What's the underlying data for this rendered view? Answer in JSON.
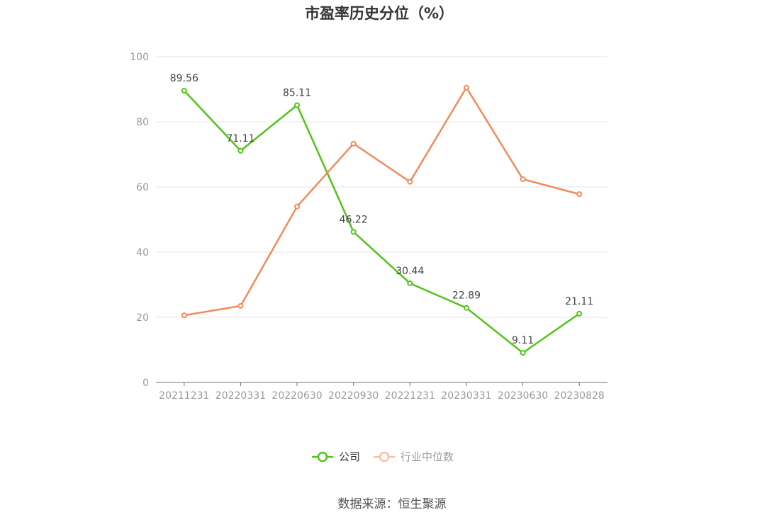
{
  "chart_data": {
    "type": "line",
    "title": "市盈率历史分位（%）",
    "categories": [
      "20211231",
      "20220331",
      "20220630",
      "20220930",
      "20221231",
      "20230331",
      "20230630",
      "20230828"
    ],
    "ylim": [
      0,
      100
    ],
    "yticks": [
      0,
      20,
      40,
      60,
      80,
      100
    ],
    "grid": true,
    "legend_position": "bottom",
    "series": [
      {
        "name": "公司",
        "color": "#52c41a",
        "values": [
          89.56,
          71.11,
          85.11,
          46.22,
          30.44,
          22.89,
          9.11,
          21.11
        ],
        "labels": [
          "89.56",
          "71.11",
          "85.11",
          "46.22",
          "30.44",
          "22.89",
          "9.11",
          "21.11"
        ]
      },
      {
        "name": "行业中位数",
        "color": "#f08c5a",
        "values": [
          20.6,
          23.5,
          54.0,
          73.3,
          61.6,
          90.5,
          62.4,
          57.8
        ],
        "labels": []
      }
    ],
    "legend_colors": [
      "#52c41a",
      "#f9bfa3"
    ],
    "source": "数据来源：恒生聚源"
  }
}
